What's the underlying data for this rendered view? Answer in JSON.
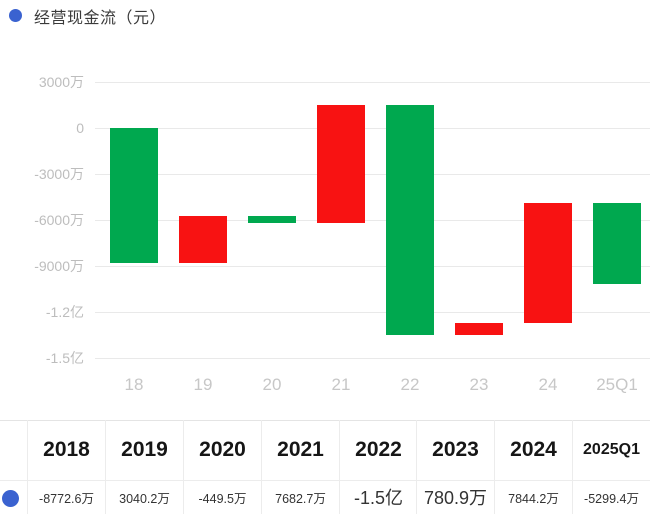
{
  "legend": {
    "label": "经营现金流（元）",
    "dot_color": "#3a62d0"
  },
  "colors": {
    "increase_bar": "#f81212",
    "decrease_bar": "#00a84f",
    "gridline": "#e9e9e9",
    "y_tick_text": "#bdbdbd",
    "x_tick_text": "#c7c7c7",
    "table_border": "#ececec",
    "header_text": "#161616",
    "value_text": "#333333",
    "legend_dot": "#3a62d0"
  },
  "chart_data": {
    "type": "bar",
    "subtype": "waterfall",
    "title": "经营现金流（元）",
    "unit": "元",
    "categories": [
      "18",
      "19",
      "20",
      "21",
      "22",
      "23",
      "24",
      "25Q1"
    ],
    "values_wan": [
      -8772.6,
      3040.2,
      -449.5,
      7682.7,
      -15000,
      780.9,
      7844.2,
      -5299.4
    ],
    "value_labels": [
      "-8772.6万",
      "3040.2万",
      "-449.5万",
      "7682.7万",
      "-1.5亿",
      "780.9万",
      "7844.2万",
      "-5299.4万"
    ],
    "bar_colors_semantics": {
      "positive": "red-increase",
      "negative": "green-decrease"
    },
    "y_axis": {
      "ticks": [
        "3000万",
        "0",
        "-3000万",
        "-6000万",
        "-9000万",
        "-1.2亿",
        "-1.5亿"
      ],
      "tick_values_wan": [
        3000,
        0,
        -3000,
        -6000,
        -9000,
        -12000,
        -15000
      ]
    },
    "grid": "horizontal-only",
    "legend_position": "top-left"
  },
  "table": {
    "headers": [
      "2018",
      "2019",
      "2020",
      "2021",
      "2022",
      "2023",
      "2024",
      "2025Q1"
    ],
    "values": [
      "-8772.6万",
      "3040.2万",
      "-449.5万",
      "7682.7万",
      "-1.5亿",
      "780.9万",
      "7844.2万",
      "-5299.4万"
    ]
  }
}
